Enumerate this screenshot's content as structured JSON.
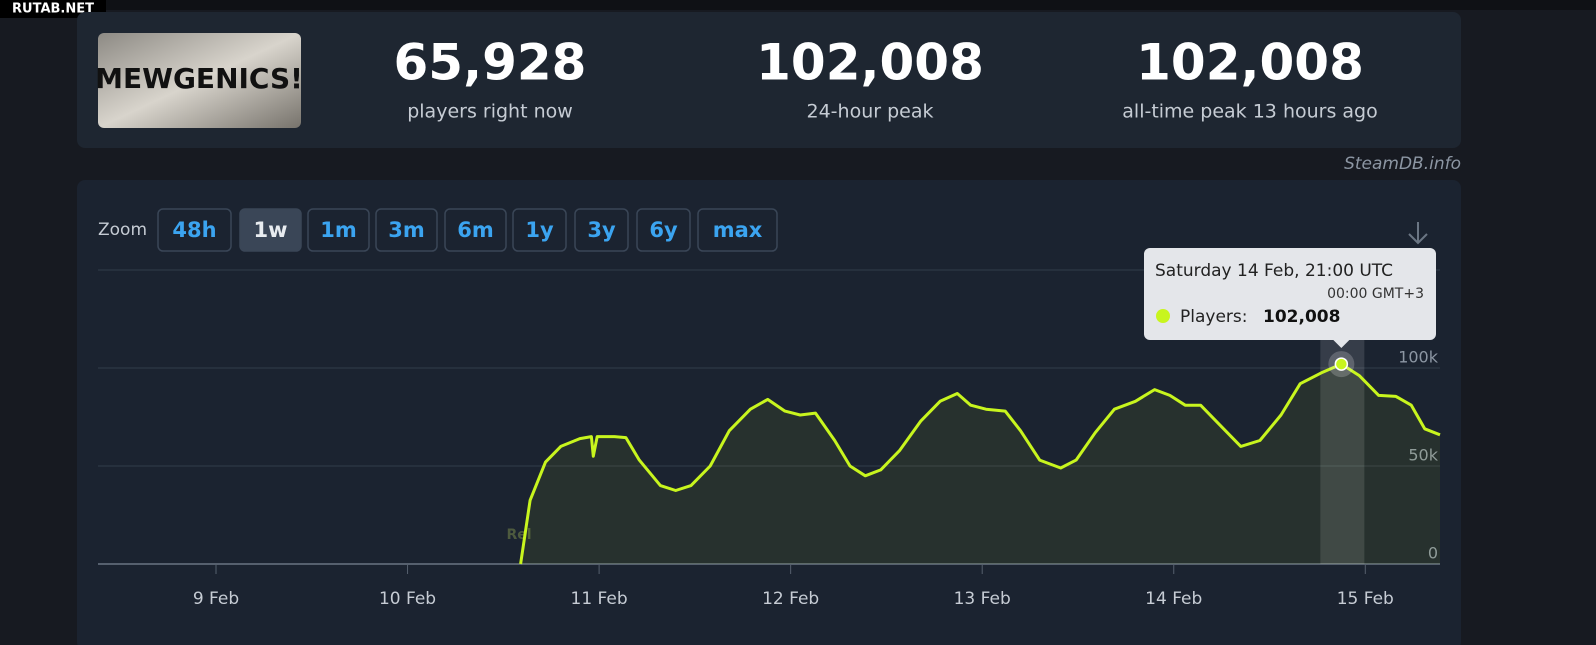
{
  "watermark": "RUTAB.NET",
  "logo": "MEWGENICS!",
  "stats": [
    {
      "value": "65,928",
      "label": "players right now"
    },
    {
      "value": "102,008",
      "label": "24-hour peak"
    },
    {
      "value": "102,008",
      "label": "all-time peak 13 hours ago"
    }
  ],
  "source": "SteamDB.info",
  "zoom": {
    "label": "Zoom",
    "buttons": [
      "48h",
      "1w",
      "1m",
      "3m",
      "6m",
      "1y",
      "3y",
      "6y",
      "max"
    ],
    "active": "1w"
  },
  "tooltip": {
    "title": "Saturday 14 Feb, 21:00 UTC",
    "local_time": "00:00 GMT+3",
    "label": "Players:",
    "value": "102,008"
  },
  "chart_data": {
    "type": "line",
    "annotation": "Rel",
    "xlim": [
      8.384,
      15.39
    ],
    "xticks": [
      {
        "value": 9,
        "label": "9 Feb"
      },
      {
        "value": 10,
        "label": "10 Feb"
      },
      {
        "value": 11,
        "label": "11 Feb"
      },
      {
        "value": 12,
        "label": "12 Feb"
      },
      {
        "value": 13,
        "label": "13 Feb"
      },
      {
        "value": 14,
        "label": "14 Feb"
      },
      {
        "value": 15,
        "label": "15 Feb"
      }
    ],
    "ylim": [
      0,
      150000
    ],
    "yticks": [
      {
        "value": 0,
        "label": "0"
      },
      {
        "value": 50000,
        "label": "50k"
      },
      {
        "value": 100000,
        "label": "100k"
      }
    ],
    "grid": true,
    "x": [
      10.59,
      10.64,
      10.72,
      10.8,
      10.9,
      10.96,
      10.97,
      10.99,
      11.08,
      11.14,
      11.21,
      11.32,
      11.4,
      11.48,
      11.58,
      11.68,
      11.79,
      11.88,
      11.97,
      12.05,
      12.13,
      12.23,
      12.31,
      12.39,
      12.47,
      12.57,
      12.68,
      12.78,
      12.87,
      12.94,
      13.02,
      13.12,
      13.2,
      13.3,
      13.41,
      13.49,
      13.59,
      13.69,
      13.8,
      13.9,
      13.98,
      14.06,
      14.14,
      14.24,
      14.35,
      14.45,
      14.56,
      14.66,
      14.77,
      14.875,
      14.97,
      15.07,
      15.16,
      15.24,
      15.31,
      15.39
    ],
    "series": [
      {
        "name": "Players",
        "color": "#c8f51e",
        "values": [
          0,
          32500,
          52000,
          60000,
          64000,
          65000,
          55000,
          65000,
          65000,
          64500,
          53000,
          40000,
          37500,
          40000,
          50000,
          68000,
          79000,
          84000,
          78000,
          76000,
          77000,
          63000,
          50000,
          45000,
          48000,
          58000,
          73000,
          83000,
          87000,
          81000,
          79000,
          78000,
          68000,
          53000,
          49000,
          53000,
          67000,
          79000,
          83000,
          89000,
          86000,
          81000,
          81000,
          71000,
          60000,
          63000,
          76000,
          92000,
          97500,
          102008,
          96000,
          86000,
          85500,
          81000,
          69000,
          65928
        ]
      }
    ],
    "highlight_index": 49
  }
}
